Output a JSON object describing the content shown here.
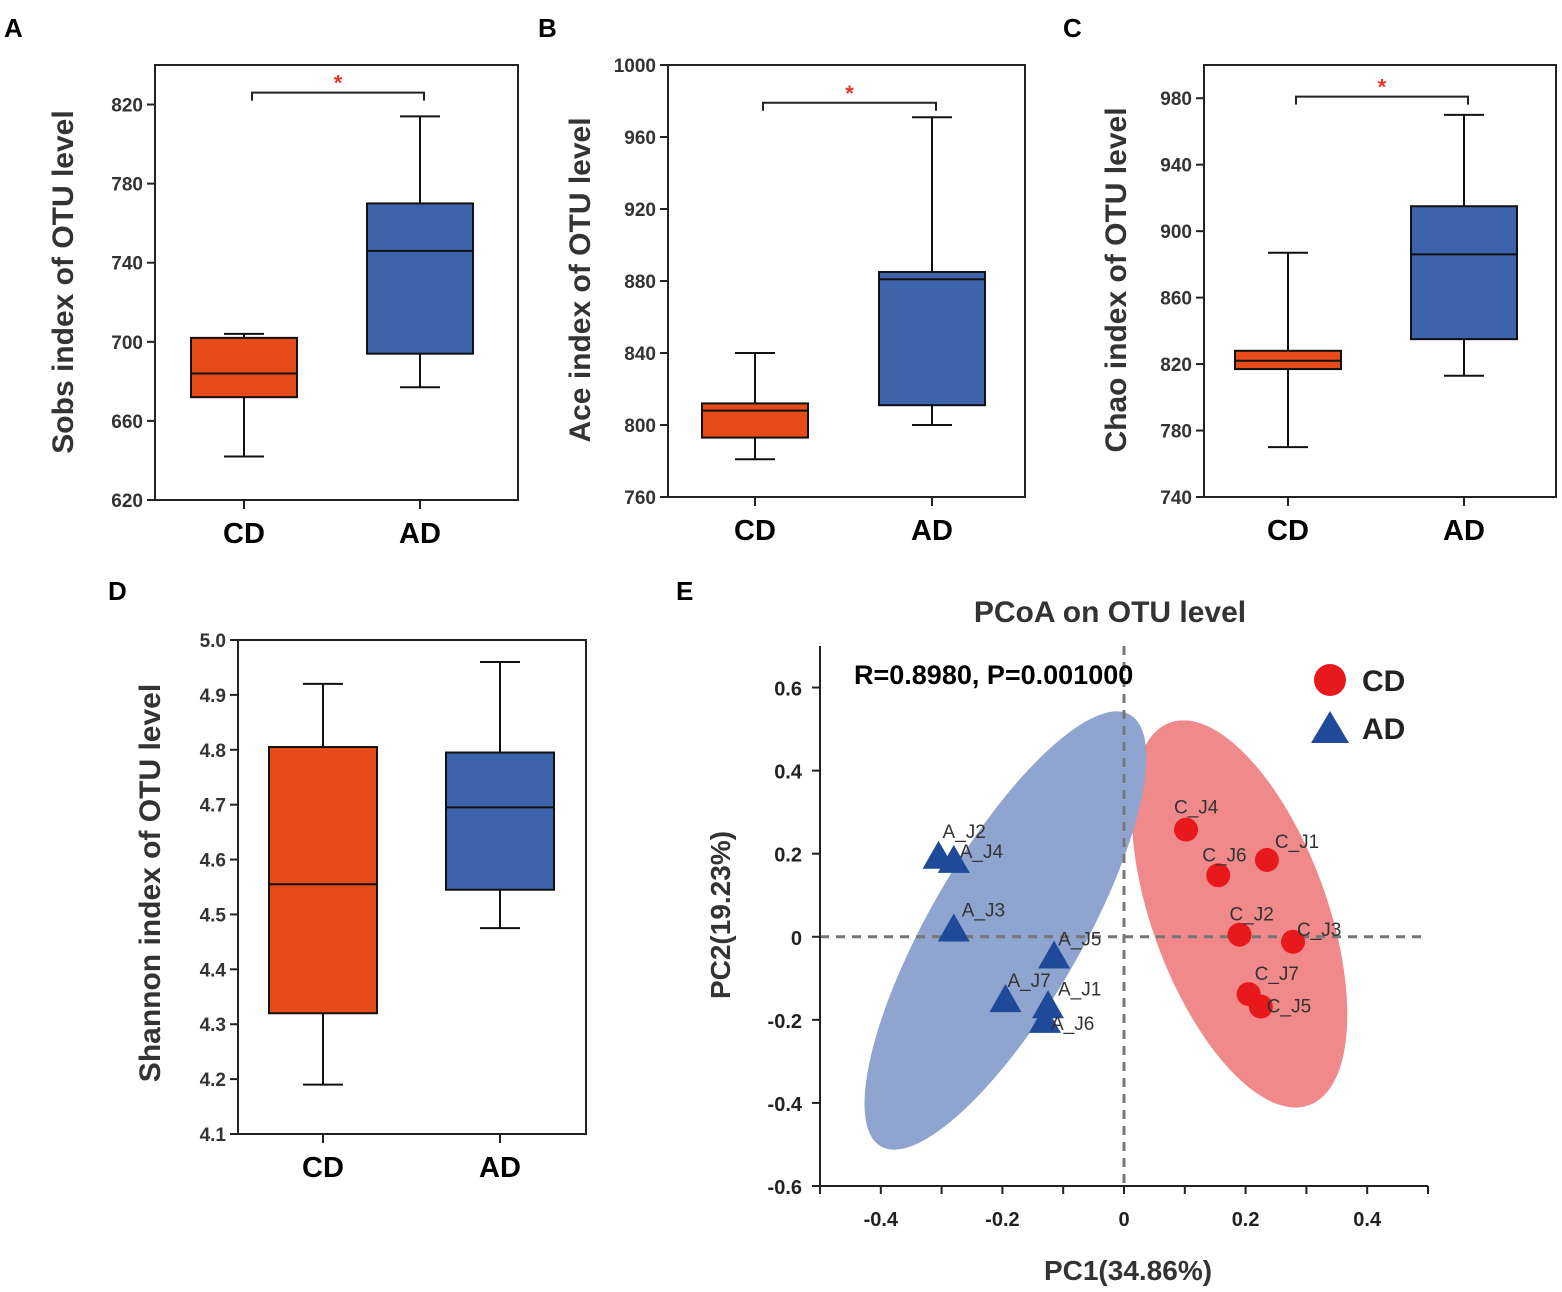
{
  "colors": {
    "cd": "#e84b1a",
    "ad": "#3d64aa",
    "cd_point": "#e8191d",
    "ad_point": "#1f4a9a",
    "cd_ellipse": "#f08a8a",
    "ad_ellipse": "#8fa5cf",
    "star": "#e8322a"
  },
  "chart_data": [
    {
      "type": "box",
      "panel": "A",
      "ylabel": "Sobs index of OTU level",
      "ylim": [
        620,
        840
      ],
      "yticks": [
        620,
        660,
        700,
        740,
        780,
        820
      ],
      "categories": [
        "CD",
        "AD"
      ],
      "boxes": [
        {
          "name": "CD",
          "min": 642,
          "q1": 672,
          "median": 684,
          "q3": 702,
          "max": 704
        },
        {
          "name": "AD",
          "min": 677,
          "q1": 694,
          "median": 746,
          "q3": 770,
          "max": 814
        }
      ],
      "significance": {
        "label": "*",
        "y": 826
      }
    },
    {
      "type": "box",
      "panel": "B",
      "ylabel": "Ace index of OTU level",
      "ylim": [
        760,
        1000
      ],
      "yticks": [
        760,
        800,
        840,
        880,
        920,
        960,
        1000
      ],
      "categories": [
        "CD",
        "AD"
      ],
      "boxes": [
        {
          "name": "CD",
          "min": 781,
          "q1": 793,
          "median": 808,
          "q3": 812,
          "max": 840
        },
        {
          "name": "AD",
          "min": 800,
          "q1": 811,
          "median": 881,
          "q3": 885,
          "max": 971
        }
      ],
      "significance": {
        "label": "*",
        "y": 979
      }
    },
    {
      "type": "box",
      "panel": "C",
      "ylabel": "Chao index of OTU level",
      "ylim": [
        740,
        1000
      ],
      "yticks": [
        740,
        780,
        820,
        860,
        900,
        940,
        980
      ],
      "categories": [
        "CD",
        "AD"
      ],
      "boxes": [
        {
          "name": "CD",
          "min": 770,
          "q1": 817,
          "median": 822,
          "q3": 828,
          "max": 887
        },
        {
          "name": "AD",
          "min": 813,
          "q1": 835,
          "median": 886,
          "q3": 915,
          "max": 970
        }
      ],
      "significance": {
        "label": "*",
        "y": 981
      }
    },
    {
      "type": "box",
      "panel": "D",
      "ylabel": "Shannon index of OTU level",
      "ylim": [
        4.1,
        5.0
      ],
      "yticks": [
        "4.1",
        "4.2",
        "4.3",
        "4.4",
        "4.5",
        "4.6",
        "4.7",
        "4.8",
        "4.9",
        "5.0"
      ],
      "categories": [
        "CD",
        "AD"
      ],
      "boxes": [
        {
          "name": "CD",
          "min": 4.19,
          "q1": 4.32,
          "median": 4.555,
          "q3": 4.805,
          "max": 4.92
        },
        {
          "name": "AD",
          "min": 4.475,
          "q1": 4.545,
          "median": 4.695,
          "q3": 4.795,
          "max": 4.96
        }
      ]
    },
    {
      "type": "scatter",
      "panel": "E",
      "title": "PCoA on OTU level",
      "annotation": "R=0.8980, P=0.001000",
      "xlabel": "PC1(34.86%)",
      "ylabel": "PC2(19.23%)",
      "xlim": [
        -0.5,
        0.5
      ],
      "ylim": [
        -0.6,
        0.7
      ],
      "xticks": [
        "-0.4",
        "-0.2",
        "0",
        "0.2",
        "0.4"
      ],
      "yticks": [
        "-0.6",
        "-0.4",
        "-0.2",
        "0",
        "0.2",
        "0.4",
        "0.6"
      ],
      "legend": [
        {
          "name": "CD",
          "marker": "circle"
        },
        {
          "name": "AD",
          "marker": "triangle"
        }
      ],
      "series": [
        {
          "name": "CD",
          "marker": "circle",
          "points": [
            {
              "label": "C_J1",
              "x": 0.235,
              "y": 0.185
            },
            {
              "label": "C_J2",
              "x": 0.19,
              "y": 0.005
            },
            {
              "label": "C_J3",
              "x": 0.278,
              "y": -0.012
            },
            {
              "label": "C_J4",
              "x": 0.102,
              "y": 0.258
            },
            {
              "label": "C_J5",
              "x": 0.225,
              "y": -0.168
            },
            {
              "label": "C_J6",
              "x": 0.155,
              "y": 0.148
            },
            {
              "label": "C_J7",
              "x": 0.205,
              "y": -0.138
            }
          ]
        },
        {
          "name": "AD",
          "marker": "triangle",
          "points": [
            {
              "label": "A_J1",
              "x": -0.125,
              "y": -0.165
            },
            {
              "label": "A_J2",
              "x": -0.305,
              "y": 0.195
            },
            {
              "label": "A_J3",
              "x": -0.28,
              "y": 0.02
            },
            {
              "label": "A_J4",
              "x": -0.28,
              "y": 0.185
            },
            {
              "label": "A_J5",
              "x": -0.115,
              "y": -0.045
            },
            {
              "label": "A_J6",
              "x": -0.13,
              "y": -0.2
            },
            {
              "label": "A_J7",
              "x": -0.195,
              "y": -0.15
            }
          ]
        }
      ],
      "ellipses": [
        {
          "name": "CD",
          "cx": 0.19,
          "cy": 0.055,
          "rx": 0.144,
          "ry": 0.49,
          "angle": -20
        },
        {
          "name": "AD",
          "cx": -0.195,
          "cy": 0.015,
          "rx": 0.125,
          "ry": 0.6,
          "angle": 30
        }
      ]
    }
  ]
}
